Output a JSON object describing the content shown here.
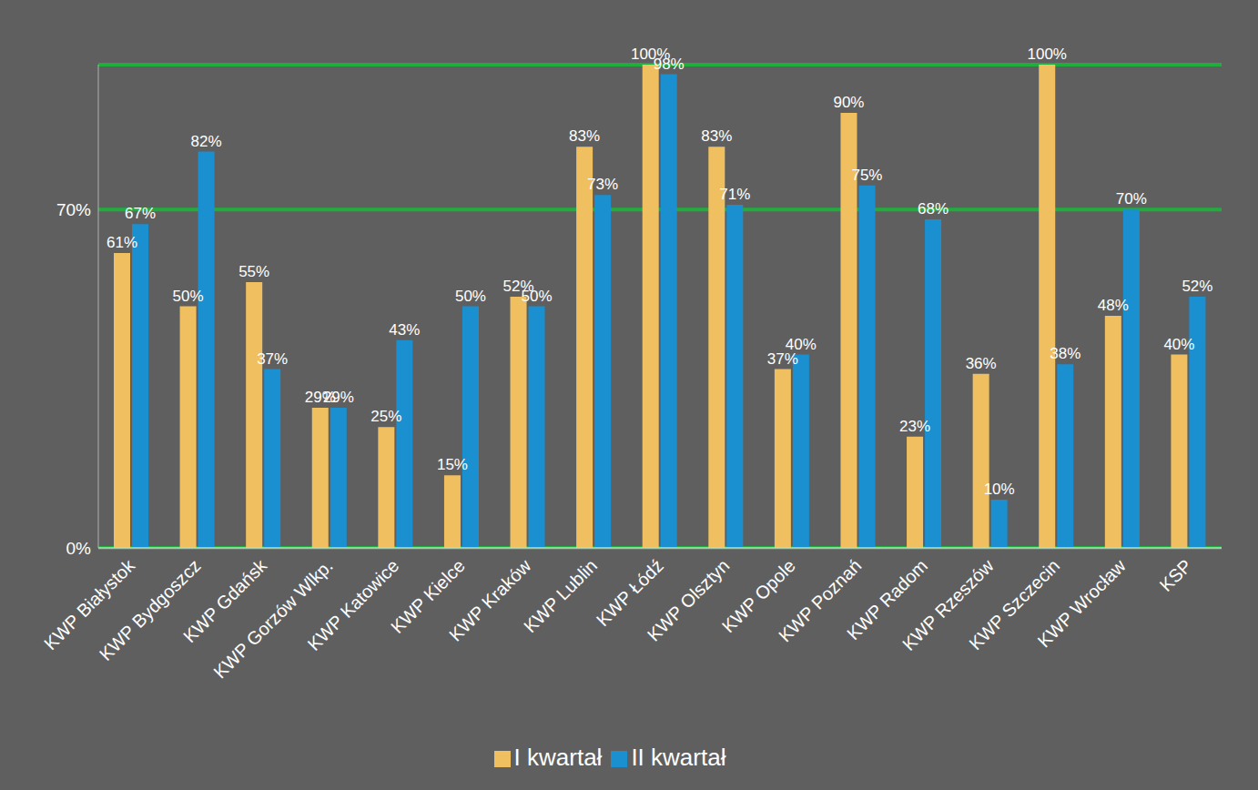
{
  "chart_data": {
    "type": "bar",
    "categories": [
      "KWP Białystok",
      "KWP Bydgoszcz",
      "KWP Gdańsk",
      "KWP Gorzów Wlkp.",
      "KWP Katowice",
      "KWP Kielce",
      "KWP Kraków",
      "KWP Lublin",
      "KWP Łódź",
      "KWP Olsztyn",
      "KWP Opole",
      "KWP Poznań",
      "KWP Radom",
      "KWP Rzeszów",
      "KWP Szczecin",
      "KWP Wrocław",
      "KSP"
    ],
    "series": [
      {
        "name": "I kwartał",
        "color": "#f0c060",
        "values": [
          61,
          50,
          55,
          29,
          25,
          15,
          52,
          83,
          100,
          83,
          37,
          90,
          23,
          36,
          100,
          48,
          40
        ],
        "value_labels": [
          "61%",
          "50%",
          "55%",
          "29%",
          "25%",
          "15%",
          "52%",
          "83%",
          "100%",
          "83%",
          "37%",
          "90%",
          "23%",
          "36%",
          "100%",
          "48%",
          "40%"
        ]
      },
      {
        "name": "II kwartał",
        "color": "#1a90d0",
        "values": [
          67,
          82,
          37,
          29,
          43,
          50,
          50,
          73,
          98,
          71,
          40,
          75,
          68,
          10,
          38,
          70,
          52
        ],
        "value_labels": [
          "67%",
          "82%",
          "37%",
          "29%",
          "43%",
          "50%",
          "50%",
          "73%",
          "98%",
          "71%",
          "40%",
          "75%",
          "68%",
          "10%",
          "38%",
          "70%",
          "52%"
        ]
      }
    ],
    "ylim": [
      0,
      100
    ],
    "yticks": [
      {
        "value": 0,
        "label": "0%"
      },
      {
        "value": 70,
        "label": "70%"
      }
    ],
    "grid": true,
    "data_labels": true,
    "legend": "bottom"
  }
}
